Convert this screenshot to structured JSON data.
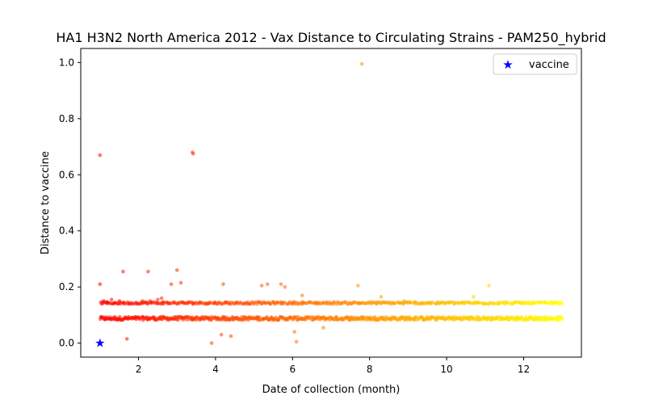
{
  "chart_data": {
    "type": "scatter",
    "title": "HA1 H3N2 North America 2012 - Vax Distance to Circulating Strains - PAM250_hybrid",
    "xlabel": "Date of collection (month)",
    "ylabel": "Distance to vaccine",
    "xlim": [
      0.5,
      13.5
    ],
    "ylim": [
      -0.05,
      1.05
    ],
    "xticks": [
      2,
      4,
      6,
      8,
      10,
      12
    ],
    "yticks": [
      0.0,
      0.2,
      0.4,
      0.6,
      0.8,
      1.0
    ],
    "xtick_labels": [
      "2",
      "4",
      "6",
      "8",
      "10",
      "12"
    ],
    "ytick_labels": [
      "0.0",
      "0.2",
      "0.4",
      "0.6",
      "0.8",
      "1.0"
    ],
    "grid": false,
    "legend_position": "top-right",
    "color_scale": [
      "#ff0000",
      "#ff8000",
      "#ffff00"
    ],
    "marker_color_vaccine": "#0000ff",
    "vaccine": {
      "name": "vaccine",
      "x": 1.0,
      "y": 0.0
    },
    "bands": [
      {
        "y": 0.088,
        "jitter": 0.006,
        "x_start": 1.0,
        "x_end": 13.0,
        "count": 650
      },
      {
        "y": 0.143,
        "jitter": 0.004,
        "x_start": 1.0,
        "x_end": 13.0,
        "count": 420
      }
    ],
    "points": [
      [
        1.0,
        0.67
      ],
      [
        1.0,
        0.21
      ],
      [
        1.1,
        0.15
      ],
      [
        1.3,
        0.155
      ],
      [
        1.5,
        0.15
      ],
      [
        1.6,
        0.255
      ],
      [
        1.7,
        0.015
      ],
      [
        2.1,
        0.15
      ],
      [
        2.25,
        0.255
      ],
      [
        2.3,
        0.15
      ],
      [
        2.5,
        0.155
      ],
      [
        2.6,
        0.16
      ],
      [
        2.85,
        0.21
      ],
      [
        3.0,
        0.26
      ],
      [
        3.1,
        0.215
      ],
      [
        3.4,
        0.68
      ],
      [
        3.42,
        0.675
      ],
      [
        3.9,
        0.0
      ],
      [
        4.15,
        0.03
      ],
      [
        4.2,
        0.21
      ],
      [
        4.4,
        0.025
      ],
      [
        5.2,
        0.205
      ],
      [
        5.35,
        0.21
      ],
      [
        5.7,
        0.21
      ],
      [
        5.8,
        0.2
      ],
      [
        6.05,
        0.04
      ],
      [
        6.1,
        0.005
      ],
      [
        6.25,
        0.17
      ],
      [
        6.8,
        0.055
      ],
      [
        7.7,
        0.205
      ],
      [
        7.8,
        0.995
      ],
      [
        11.1,
        0.205
      ],
      [
        10.7,
        0.165
      ],
      [
        8.3,
        0.165
      ],
      [
        8.9,
        0.15
      ]
    ]
  }
}
